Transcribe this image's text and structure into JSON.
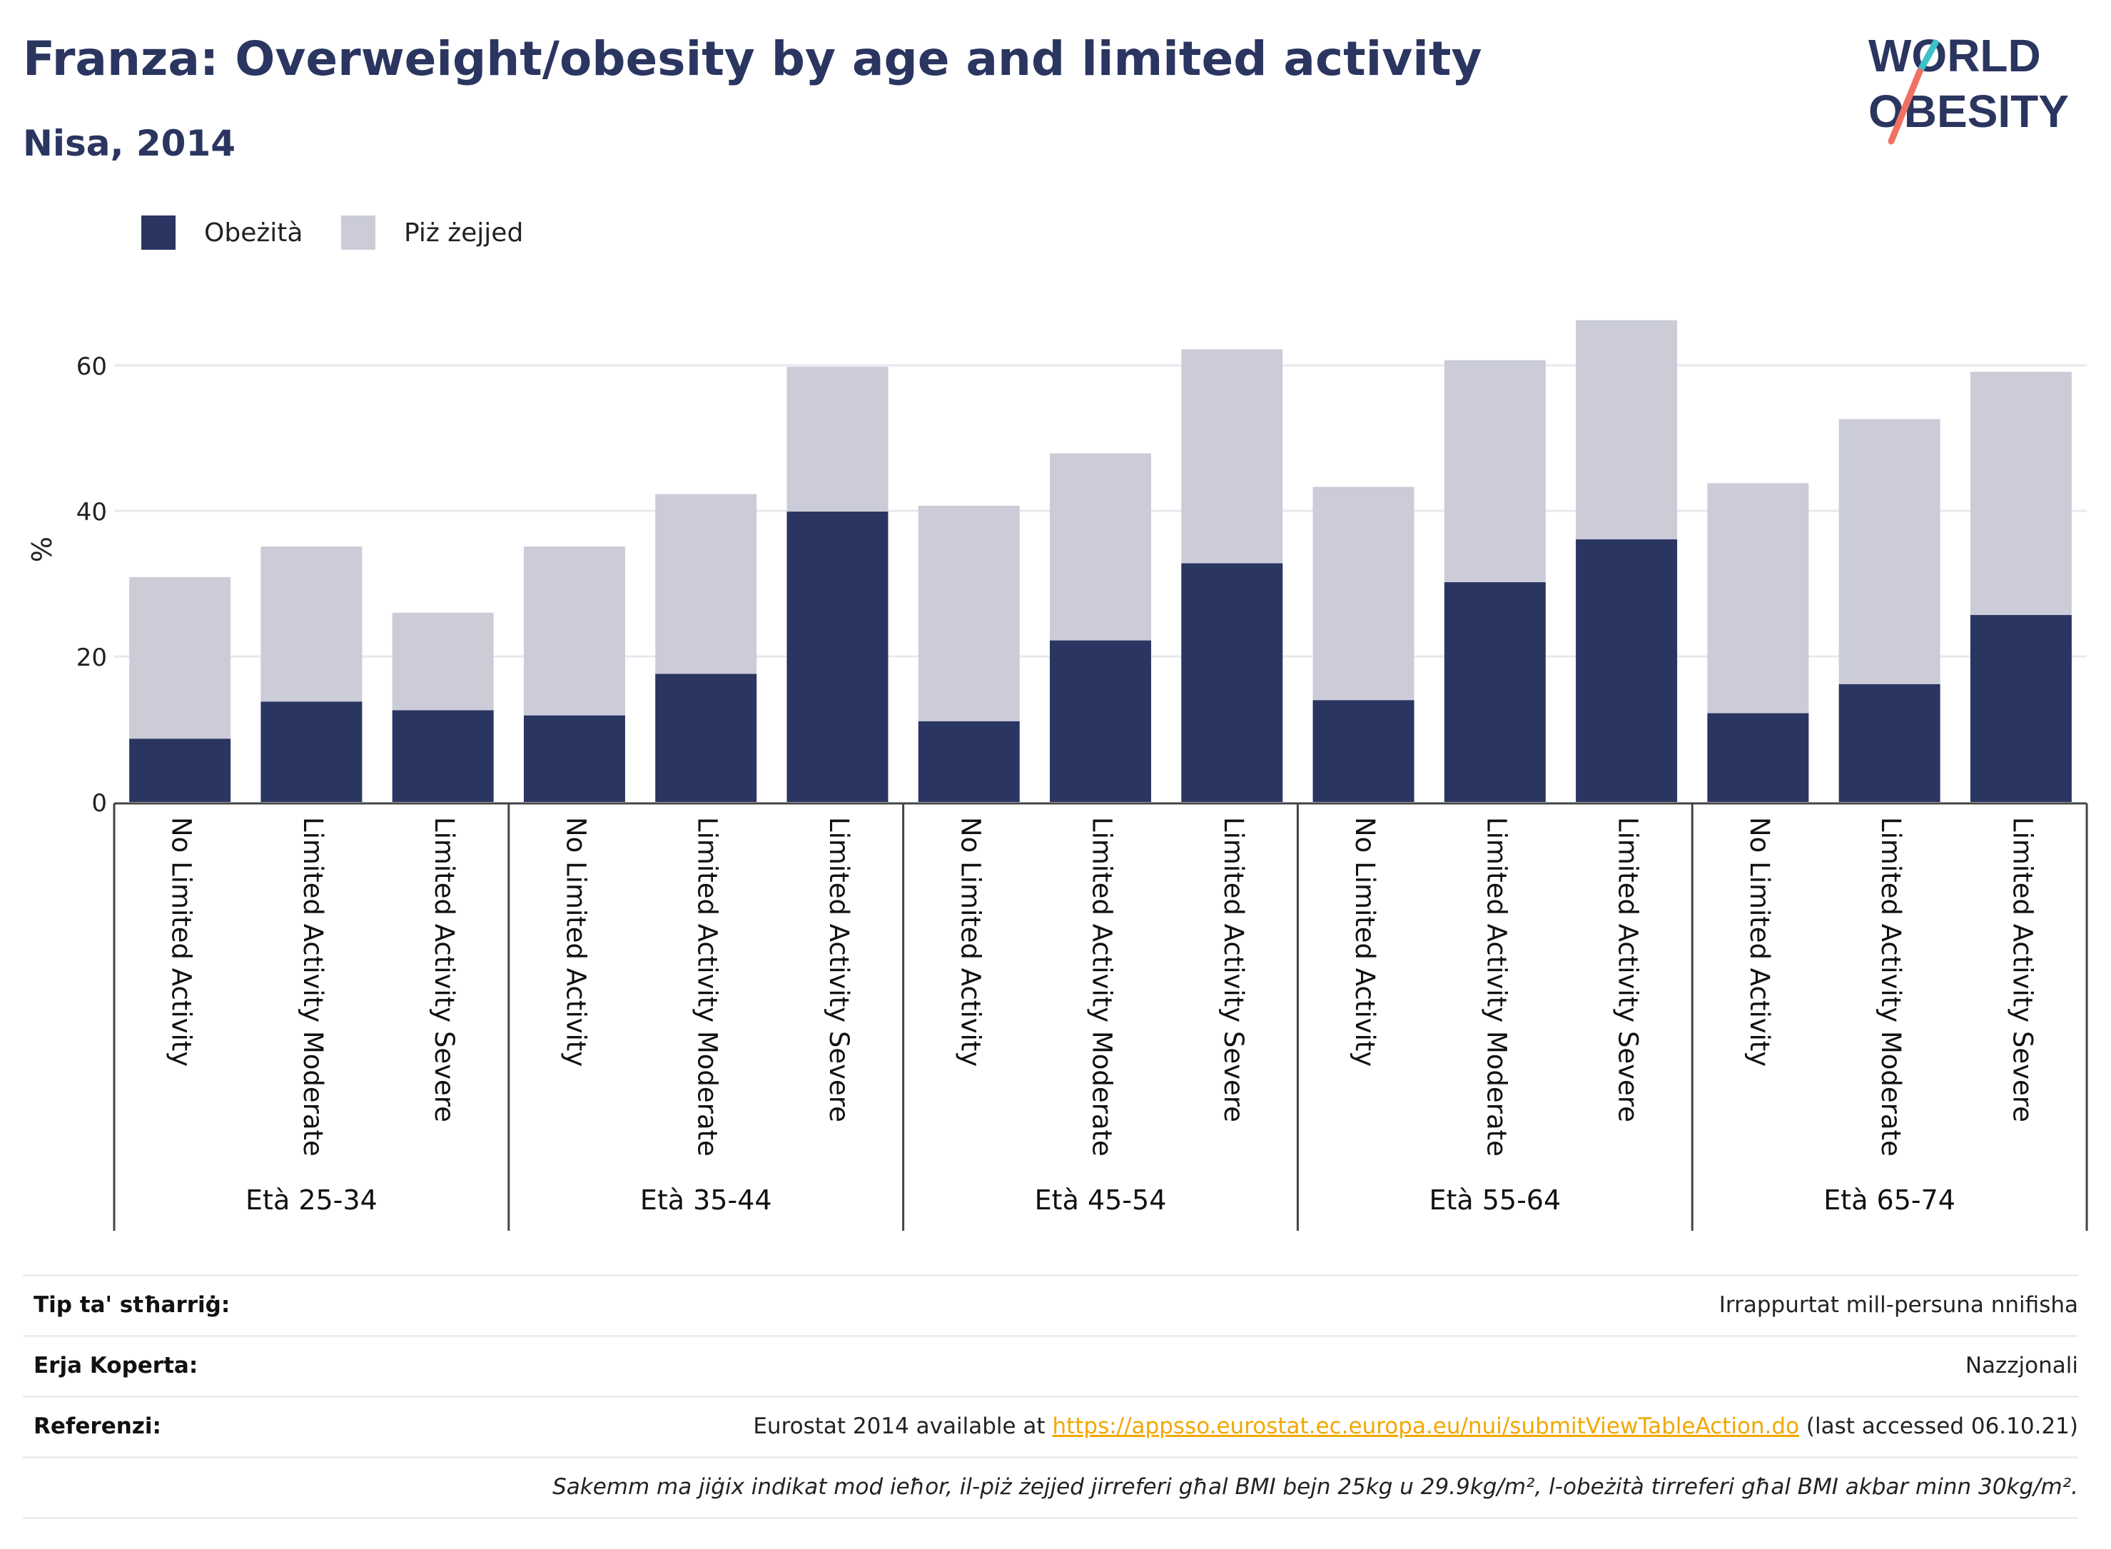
{
  "header": {
    "title": "Franza: Overweight/obesity by age and limited activity",
    "subtitle": "Nisa, 2014"
  },
  "logo": {
    "line1": "WORLD",
    "line2": "OBESITY"
  },
  "colors": {
    "obesity": "#2a3562",
    "overweight": "#cbccd8",
    "text": "#2a3560",
    "accent_teal": "#3fc1c9",
    "accent_red": "#f07162"
  },
  "legend": [
    {
      "label": "Obeżità",
      "color": "#2a3562"
    },
    {
      "label": "Piż żejjed",
      "color": "#cbccd8"
    }
  ],
  "chart_data": {
    "type": "bar",
    "stacked": true,
    "ylabel": "%",
    "ylim": [
      0,
      70
    ],
    "yticks": [
      0,
      20,
      40,
      60
    ],
    "grid": true,
    "legend_position": "top-left",
    "groups": [
      "Età 25-34",
      "Età 35-44",
      "Età 45-54",
      "Età 55-64",
      "Età 65-74"
    ],
    "subcategories": [
      "No Limited Activity",
      "Limited Activity Moderate",
      "Limited Activity Severe"
    ],
    "series": [
      {
        "name": "Obeżità",
        "values": [
          8.7,
          13.8,
          12.6,
          11.9,
          17.6,
          39.9,
          11.1,
          22.2,
          32.8,
          14.0,
          30.2,
          36.1,
          12.2,
          16.2,
          25.7
        ]
      },
      {
        "name": "Piż żejjed",
        "values": [
          22.2,
          21.3,
          13.4,
          23.2,
          24.7,
          19.9,
          29.6,
          25.7,
          29.4,
          29.3,
          30.5,
          30.1,
          31.6,
          36.4,
          33.4
        ]
      }
    ]
  },
  "info": [
    {
      "label": "Tip ta' stħarriġ:",
      "value": "Irrappurtat mill-persuna nnifisha"
    },
    {
      "label": "Erja Koperta:",
      "value": "Nazzjonali"
    },
    {
      "label": "Referenzi:",
      "value_prefix": "Eurostat 2014 available at ",
      "link": "https://appsso.eurostat.ec.europa.eu/nui/submitViewTableAction.do",
      "value_suffix": " (last accessed 06.10.21)"
    },
    {
      "label": "",
      "value": "Sakemm ma jiġix indikat mod ieħor, il-piż żejjed jirreferi għal BMI bejn 25kg u 29.9kg/m², l-obeżità tirreferi għal BMI akbar minn 30kg/m²."
    }
  ]
}
